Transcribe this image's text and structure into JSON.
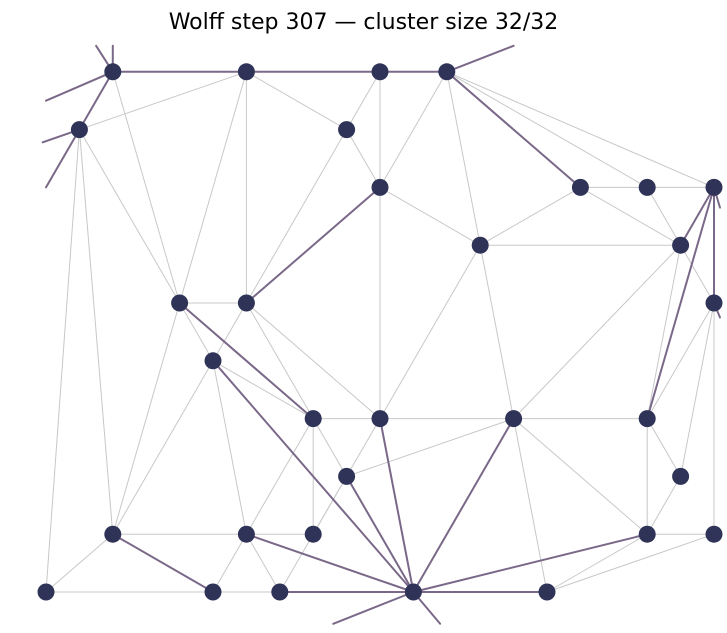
{
  "title": "Wolff step 307 — cluster size 32/32",
  "colors": {
    "node": "#2e3357",
    "bond": "#7a6888",
    "edge": "#c8c8c8"
  },
  "graph": {
    "nodes": [
      {
        "id": "n0",
        "x": 1,
        "y": 9
      },
      {
        "id": "n1",
        "x": 3,
        "y": 9
      },
      {
        "id": "n2",
        "x": 5,
        "y": 9
      },
      {
        "id": "n3",
        "x": 6,
        "y": 9
      },
      {
        "id": "n4",
        "x": 0.5,
        "y": 8
      },
      {
        "id": "n5",
        "x": 4.5,
        "y": 8
      },
      {
        "id": "n6",
        "x": 5,
        "y": 7
      },
      {
        "id": "n7",
        "x": 8,
        "y": 7
      },
      {
        "id": "n8",
        "x": 9,
        "y": 7
      },
      {
        "id": "n9",
        "x": 10,
        "y": 7
      },
      {
        "id": "n10",
        "x": 6.5,
        "y": 6
      },
      {
        "id": "n11",
        "x": 9.5,
        "y": 6
      },
      {
        "id": "n12",
        "x": 2,
        "y": 5
      },
      {
        "id": "n13",
        "x": 3,
        "y": 5
      },
      {
        "id": "n14",
        "x": 10,
        "y": 5
      },
      {
        "id": "n15",
        "x": 2.5,
        "y": 4
      },
      {
        "id": "n16",
        "x": 4,
        "y": 3
      },
      {
        "id": "n17",
        "x": 5,
        "y": 3
      },
      {
        "id": "n18",
        "x": 7,
        "y": 3
      },
      {
        "id": "n19",
        "x": 9,
        "y": 3
      },
      {
        "id": "n20",
        "x": 4.5,
        "y": 2
      },
      {
        "id": "n21",
        "x": 9.5,
        "y": 2
      },
      {
        "id": "n22",
        "x": 1,
        "y": 1
      },
      {
        "id": "n23",
        "x": 3,
        "y": 1
      },
      {
        "id": "n24",
        "x": 4,
        "y": 1
      },
      {
        "id": "n25",
        "x": 9,
        "y": 1
      },
      {
        "id": "n26",
        "x": 10,
        "y": 1
      },
      {
        "id": "n27",
        "x": 0,
        "y": 0
      },
      {
        "id": "n28",
        "x": 2.5,
        "y": 0
      },
      {
        "id": "n29",
        "x": 3.5,
        "y": 0
      },
      {
        "id": "n30",
        "x": 5.5,
        "y": 0
      },
      {
        "id": "n31",
        "x": 7.5,
        "y": 0
      }
    ],
    "bonds": [
      [
        "n0",
        "n1"
      ],
      [
        "n1",
        "n2"
      ],
      [
        "n2",
        "n3"
      ],
      [
        "n0",
        "n4"
      ],
      [
        "n3",
        "n7"
      ],
      [
        "n6",
        "n13"
      ],
      [
        "n9",
        "n11"
      ],
      [
        "n9",
        "n14"
      ],
      [
        "n9",
        "n19"
      ],
      [
        "n12",
        "n16"
      ],
      [
        "n15",
        "n30"
      ],
      [
        "n17",
        "n30"
      ],
      [
        "n18",
        "n30"
      ],
      [
        "n20",
        "n30"
      ],
      [
        "n22",
        "n28"
      ],
      [
        "n23",
        "n30"
      ],
      [
        "n25",
        "n30"
      ],
      [
        "n29",
        "n30"
      ],
      [
        "n30",
        "n31"
      ]
    ],
    "boundary_bonds": [
      {
        "from": "n0",
        "dx": 0,
        "dy": 0.45
      },
      {
        "from": "n0",
        "dx": -0.25,
        "dy": 0.45
      },
      {
        "from": "n4",
        "dx": -0.55,
        "dy": -0.22
      },
      {
        "from": "n4",
        "dx": -0.5,
        "dy": -1.0
      },
      {
        "from": "n0",
        "dx": -1.0,
        "dy": -0.5
      },
      {
        "from": "n3",
        "dx": 1.0,
        "dy": 0.45
      },
      {
        "from": "n9",
        "dx": 0.5,
        "dy": -0.35
      },
      {
        "from": "n14",
        "dx": 0.5,
        "dy": -0.25
      },
      {
        "from": "n30",
        "dx": -1.2,
        "dy": -0.55
      },
      {
        "from": "n30",
        "dx": 0.4,
        "dy": -0.55
      }
    ],
    "edges": [
      [
        "n0",
        "n12"
      ],
      [
        "n1",
        "n4"
      ],
      [
        "n1",
        "n5"
      ],
      [
        "n1",
        "n12"
      ],
      [
        "n1",
        "n13"
      ],
      [
        "n2",
        "n5"
      ],
      [
        "n2",
        "n6"
      ],
      [
        "n3",
        "n6"
      ],
      [
        "n3",
        "n10"
      ],
      [
        "n3",
        "n8"
      ],
      [
        "n3",
        "n9"
      ],
      [
        "n4",
        "n12"
      ],
      [
        "n4",
        "n27"
      ],
      [
        "n4",
        "n22"
      ],
      [
        "n5",
        "n6"
      ],
      [
        "n5",
        "n13"
      ],
      [
        "n6",
        "n10"
      ],
      [
        "n6",
        "n17"
      ],
      [
        "n7",
        "n8"
      ],
      [
        "n7",
        "n10"
      ],
      [
        "n7",
        "n11"
      ],
      [
        "n8",
        "n9"
      ],
      [
        "n8",
        "n11"
      ],
      [
        "n9",
        "n14"
      ],
      [
        "n10",
        "n11"
      ],
      [
        "n10",
        "n17"
      ],
      [
        "n10",
        "n18"
      ],
      [
        "n11",
        "n14"
      ],
      [
        "n11",
        "n18"
      ],
      [
        "n11",
        "n19"
      ],
      [
        "n12",
        "n13"
      ],
      [
        "n12",
        "n15"
      ],
      [
        "n12",
        "n22"
      ],
      [
        "n13",
        "n15"
      ],
      [
        "n13",
        "n16"
      ],
      [
        "n13",
        "n17"
      ],
      [
        "n14",
        "n19"
      ],
      [
        "n14",
        "n21"
      ],
      [
        "n14",
        "n26"
      ],
      [
        "n15",
        "n16"
      ],
      [
        "n15",
        "n22"
      ],
      [
        "n15",
        "n23"
      ],
      [
        "n16",
        "n17"
      ],
      [
        "n16",
        "n20"
      ],
      [
        "n16",
        "n24"
      ],
      [
        "n16",
        "n23"
      ],
      [
        "n17",
        "n18"
      ],
      [
        "n17",
        "n20"
      ],
      [
        "n18",
        "n19"
      ],
      [
        "n18",
        "n20"
      ],
      [
        "n18",
        "n25"
      ],
      [
        "n18",
        "n31"
      ],
      [
        "n19",
        "n21"
      ],
      [
        "n19",
        "n25"
      ],
      [
        "n20",
        "n24"
      ],
      [
        "n20",
        "n29"
      ],
      [
        "n21",
        "n25"
      ],
      [
        "n22",
        "n23"
      ],
      [
        "n22",
        "n27"
      ],
      [
        "n23",
        "n24"
      ],
      [
        "n23",
        "n28"
      ],
      [
        "n23",
        "n29"
      ],
      [
        "n25",
        "n26"
      ],
      [
        "n25",
        "n31"
      ],
      [
        "n26",
        "n31"
      ],
      [
        "n27",
        "n28"
      ],
      [
        "n28",
        "n29"
      ]
    ]
  }
}
